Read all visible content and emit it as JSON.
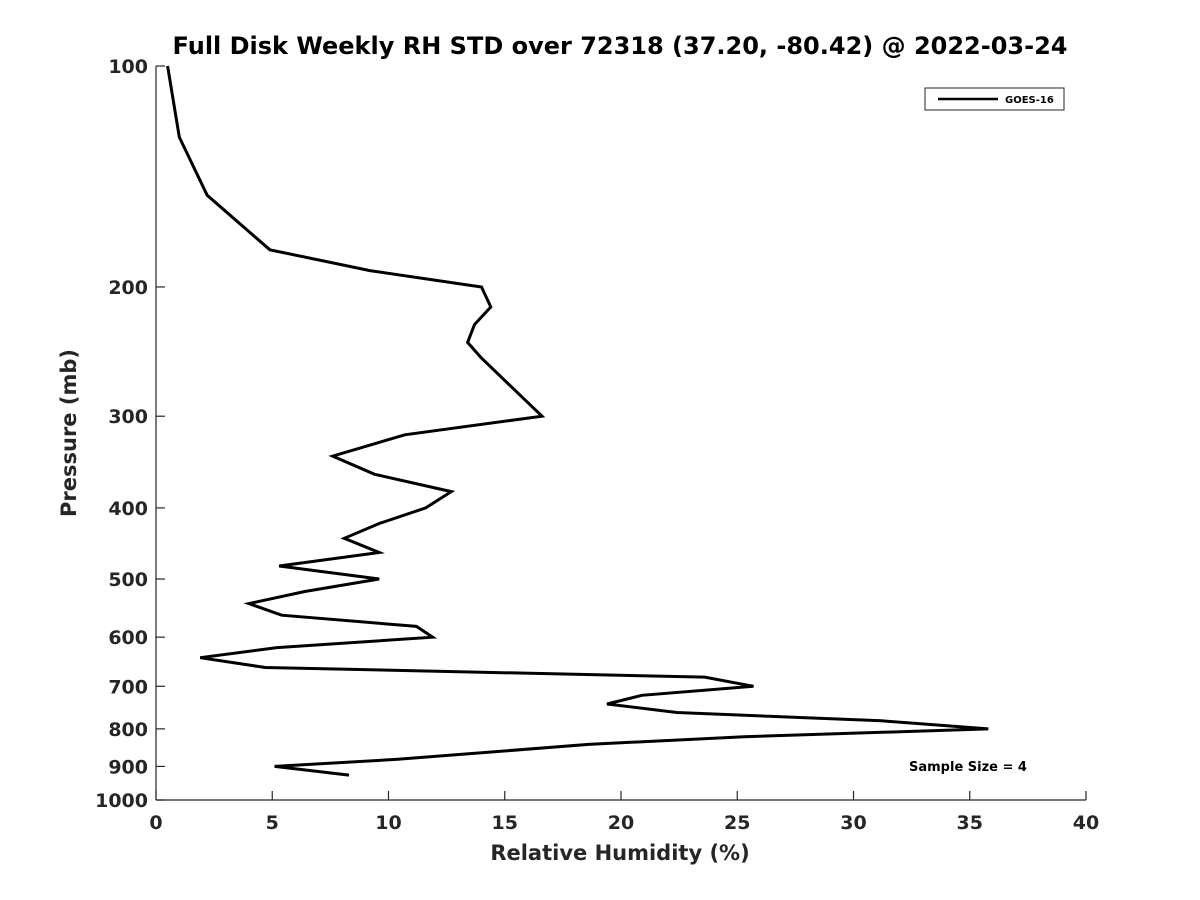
{
  "chart_data": {
    "type": "line",
    "title": "Full Disk Weekly RH STD over 72318 (37.20, -80.42) @ 2022-03-24",
    "xlabel": "Relative Humidity (%)",
    "ylabel": "Pressure (mb)",
    "xlim": [
      0,
      40
    ],
    "ylim": [
      100,
      1000
    ],
    "y_scale": "log",
    "y_reversed": true,
    "grid": false,
    "legend_position": "top-right",
    "x_ticks": [
      "0",
      "5",
      "10",
      "15",
      "20",
      "25",
      "30",
      "35",
      "40"
    ],
    "y_ticks": [
      "100",
      "200",
      "300",
      "400",
      "500",
      "600",
      "700",
      "800",
      "900",
      "1000"
    ],
    "series": [
      {
        "name": "GOES-16",
        "color": "#000000",
        "points": [
          [
            0.5,
            100
          ],
          [
            1.0,
            125
          ],
          [
            2.2,
            150
          ],
          [
            4.9,
            178
          ],
          [
            9.2,
            190
          ],
          [
            14.0,
            200
          ],
          [
            14.4,
            213
          ],
          [
            13.7,
            225
          ],
          [
            13.4,
            238
          ],
          [
            14.0,
            250
          ],
          [
            16.6,
            300
          ],
          [
            10.7,
            318
          ],
          [
            7.6,
            340
          ],
          [
            9.4,
            360
          ],
          [
            12.7,
            380
          ],
          [
            11.6,
            400
          ],
          [
            9.6,
            420
          ],
          [
            8.1,
            440
          ],
          [
            9.6,
            460
          ],
          [
            5.3,
            480
          ],
          [
            9.6,
            500
          ],
          [
            6.4,
            520
          ],
          [
            4.0,
            540
          ],
          [
            5.4,
            560
          ],
          [
            11.2,
            580
          ],
          [
            11.9,
            600
          ],
          [
            5.2,
            620
          ],
          [
            1.9,
            640
          ],
          [
            4.7,
            660
          ],
          [
            23.6,
            680
          ],
          [
            25.7,
            700
          ],
          [
            20.9,
            720
          ],
          [
            19.4,
            740
          ],
          [
            22.4,
            760
          ],
          [
            31.2,
            780
          ],
          [
            35.8,
            800
          ],
          [
            25.3,
            820
          ],
          [
            18.6,
            840
          ],
          [
            10.4,
            880
          ],
          [
            5.1,
            900
          ],
          [
            8.3,
            925
          ]
        ]
      }
    ],
    "annotation": "Sample Size = 4"
  }
}
